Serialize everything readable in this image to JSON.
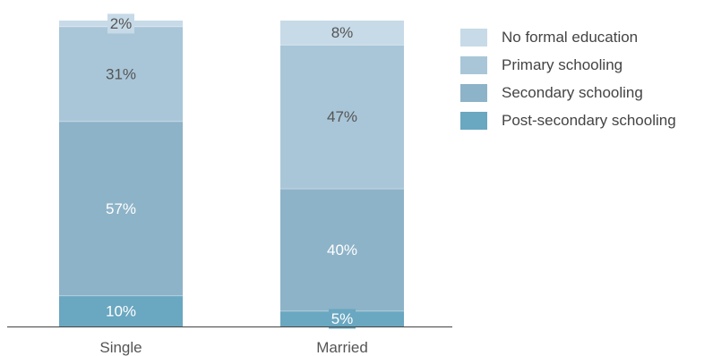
{
  "chart_data": {
    "type": "bar",
    "stacked": true,
    "categories": [
      "Single",
      "Married"
    ],
    "series": [
      {
        "name": "Post-secondary schooling",
        "values": [
          10,
          5
        ],
        "color": "#6aa7c0"
      },
      {
        "name": "Secondary schooling",
        "values": [
          57,
          40
        ],
        "color": "#8db3c8"
      },
      {
        "name": "Primary schooling",
        "values": [
          31,
          47
        ],
        "color": "#a9c6d8"
      },
      {
        "name": "No formal education",
        "values": [
          2,
          8
        ],
        "color": "#c7dae7"
      }
    ],
    "data_labels": [
      [
        "10%",
        "5%"
      ],
      [
        "57%",
        "40%"
      ],
      [
        "31%",
        "47%"
      ],
      [
        "2%",
        "8%"
      ]
    ],
    "ylim": [
      0,
      100
    ],
    "legend": {
      "placement": "right",
      "order": [
        "No formal education",
        "Primary schooling",
        "Secondary schooling",
        "Post-secondary schooling"
      ]
    }
  }
}
